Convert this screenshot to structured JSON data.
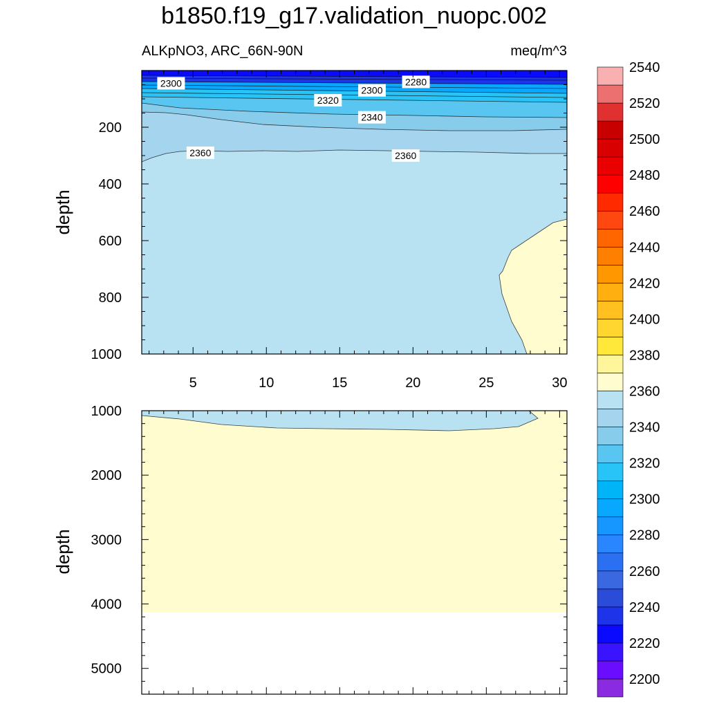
{
  "chart_data": {
    "type": "contour",
    "title": "b1850.f19_g17.validation_nuopc.002",
    "subtitle_left": "ALKpNO3, ARC_66N-90N",
    "subtitle_right": "meq/m^3",
    "panels": [
      {
        "name": "upper",
        "ylabel": "depth",
        "ylim": [
          0,
          1000
        ],
        "y_reversed": true,
        "xlim": [
          1.5,
          30.5
        ],
        "x_ticks": [
          5,
          10,
          15,
          20,
          25,
          30
        ],
        "y_ticks": [
          200,
          400,
          600,
          800,
          1000
        ],
        "contour_labels": [
          {
            "text": "2300",
            "x": 3.5,
            "y": 45
          },
          {
            "text": "2300",
            "x": 17.2,
            "y": 70
          },
          {
            "text": "2280",
            "x": 20.2,
            "y": 40
          },
          {
            "text": "2320",
            "x": 14.2,
            "y": 105
          },
          {
            "text": "2340",
            "x": 17.2,
            "y": 165
          },
          {
            "text": "2360",
            "x": 5.5,
            "y": 290
          },
          {
            "text": "2360",
            "x": 19.5,
            "y": 300
          }
        ]
      },
      {
        "name": "lower",
        "ylabel": "depth",
        "ylim": [
          1000,
          5400
        ],
        "y_reversed": true,
        "xlim": [
          1.5,
          30.5
        ],
        "y_ticks": [
          1000,
          2000,
          3000,
          4000,
          5000
        ],
        "bottom_depth": 4130
      }
    ],
    "colorbar": {
      "labels": [
        "2200",
        "2220",
        "2240",
        "2260",
        "2280",
        "2300",
        "2320",
        "2340",
        "2360",
        "2380",
        "2400",
        "2420",
        "2440",
        "2460",
        "2480",
        "2500",
        "2520",
        "2540"
      ],
      "colors": [
        "#8a2be2",
        "#6a0dff",
        "#3a14ff",
        "#0a0aff",
        "#1e34e8",
        "#2a4cd8",
        "#3a68e0",
        "#2a70f0",
        "#2a86ff",
        "#1696ff",
        "#08a8ff",
        "#00b4f8",
        "#28c4f8",
        "#58c6f0",
        "#88ccec",
        "#a4d4ee",
        "#b8e2f2",
        "#fffdd0",
        "#fff59a",
        "#ffe83a",
        "#ffd630",
        "#ffc020",
        "#ffb010",
        "#ff9800",
        "#ff8000",
        "#ff6600",
        "#ff4810",
        "#ff2a00",
        "#ff0000",
        "#ea0000",
        "#d80000",
        "#c80000",
        "#e03030",
        "#ec7070",
        "#f8b0b0"
      ]
    }
  }
}
